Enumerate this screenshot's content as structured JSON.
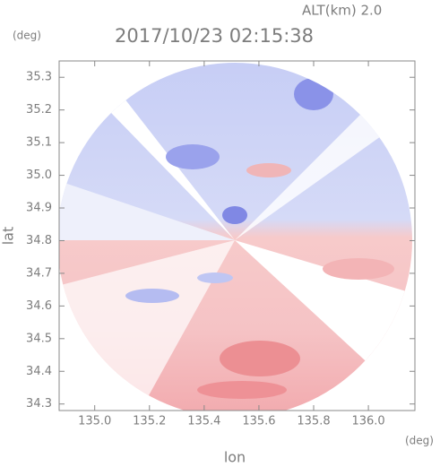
{
  "chart_data": {
    "type": "image",
    "title": "2017/10/23 02:15:38",
    "subtitle": "ALT(km) 2.0",
    "x_label": "lon",
    "y_label": "lat",
    "x_unit": "(deg)",
    "y_unit": "(deg)",
    "xlim": [
      134.87,
      136.17
    ],
    "ylim": [
      34.28,
      35.35
    ],
    "xticks": [
      {
        "value": 135.0,
        "label": "135.0"
      },
      135.2,
      135.4,
      135.6,
      135.8,
      {
        "value": 136.0,
        "label": "136.0"
      }
    ],
    "yticks": [
      34.3,
      34.4,
      34.5,
      34.6,
      34.7,
      34.8,
      34.9,
      {
        "value": 35.0,
        "label": "35.0"
      },
      35.1,
      35.2,
      35.3
    ]
  }
}
